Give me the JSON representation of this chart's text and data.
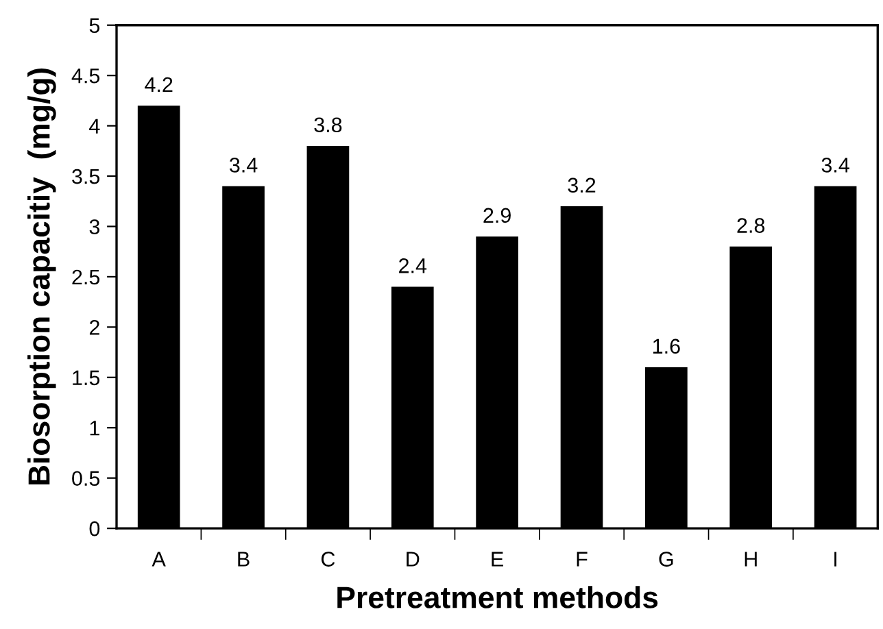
{
  "chart_data": {
    "type": "bar",
    "xlabel": "Pretreatment methods",
    "ylabel": "Biosorption capacitiy  (mg/g)",
    "categories": [
      "A",
      "B",
      "C",
      "D",
      "E",
      "F",
      "G",
      "H",
      "I"
    ],
    "values": [
      4.2,
      3.4,
      3.8,
      2.4,
      2.9,
      3.2,
      1.6,
      2.8,
      3.4
    ],
    "color": "#000000",
    "ylim": [
      0,
      5
    ],
    "yticks": [
      0,
      0.5,
      1,
      1.5,
      2,
      2.5,
      3,
      3.5,
      4,
      4.5,
      5
    ],
    "data_labels": true,
    "grid": false
  }
}
